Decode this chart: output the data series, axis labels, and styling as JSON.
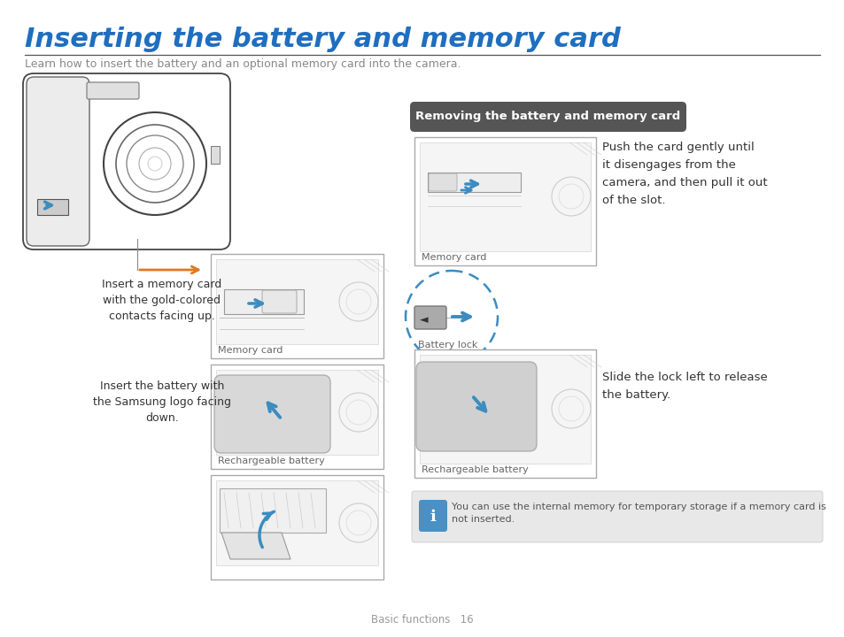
{
  "title": "Inserting the battery and memory card",
  "subtitle": "Learn how to insert the battery and an optional memory card into the camera.",
  "title_color": "#1F6EBF",
  "subtitle_color": "#888888",
  "page_footer_label": "Basic functions",
  "page_number": "16",
  "left_caption1": "Insert a memory card\nwith the gold-colored\ncontacts facing up.",
  "left_caption2": "Insert the battery with\nthe Samsung logo facing\ndown.",
  "memory_card_label": "Memory card",
  "rechargeable_battery_label": "Rechargeable battery",
  "right_header": "Removing the battery and memory card",
  "right_header_bg": "#555555",
  "right_header_fg": "#ffffff",
  "right_text1": "Push the card gently until\nit disengages from the\ncamera, and then pull it out\nof the slot.",
  "right_text2": "Slide the lock left to release\nthe battery.",
  "battery_lock_label": "Battery lock",
  "note_text": "You can use the internal memory for temporary storage if a memory card is\nnot inserted.",
  "note_bg": "#e8e8e8",
  "note_icon_bg": "#4A90C4",
  "blue": "#3A8CC1",
  "orange": "#E07820",
  "dark_gray": "#444444",
  "mid_gray": "#888888",
  "light_gray": "#dddddd",
  "text_dark": "#333333",
  "text_mid": "#666666",
  "cam_fill": "#f2f2f2",
  "cam_edge": "#444444"
}
